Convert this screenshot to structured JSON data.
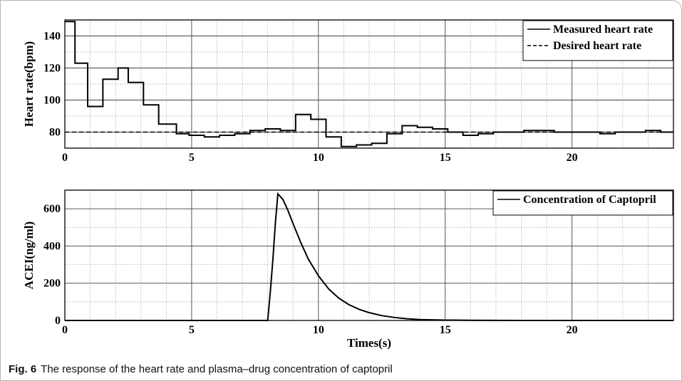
{
  "caption": {
    "label": "Fig. 6",
    "text": "The response of the heart rate and plasma–drug concentration of captopril"
  },
  "chart_data": [
    {
      "type": "line",
      "title": "",
      "xlabel": "",
      "ylabel": "Heart rate(bpm)",
      "xlim": [
        0,
        24
      ],
      "ylim": [
        70,
        150
      ],
      "xticks": [
        0,
        5,
        10,
        15,
        20
      ],
      "yticks": [
        80,
        100,
        120,
        140
      ],
      "grid": true,
      "legend_position": "top-right",
      "series": [
        {
          "name": "Measured heart rate",
          "style": "solid",
          "step": true,
          "x": [
            0,
            0.4,
            0.9,
            1.5,
            2.1,
            2.5,
            3.1,
            3.7,
            4.4,
            4.9,
            5.5,
            6.1,
            6.7,
            7.3,
            7.9,
            8.5,
            9.1,
            9.7,
            10.3,
            10.9,
            11.5,
            12.1,
            12.7,
            13.3,
            13.9,
            14.5,
            15.1,
            15.7,
            16.3,
            16.9,
            17.5,
            18.1,
            18.7,
            19.3,
            19.9,
            20.5,
            21.1,
            21.7,
            22.3,
            22.9,
            23.5,
            24
          ],
          "y": [
            149,
            123,
            96,
            113,
            120,
            111,
            97,
            85,
            79,
            78,
            77,
            78,
            79,
            81,
            82,
            81,
            91,
            88,
            77,
            71,
            72,
            73,
            79,
            84,
            83,
            82,
            80,
            78,
            79,
            80,
            80,
            81,
            81,
            80,
            80,
            80,
            79,
            80,
            80,
            81,
            80,
            80
          ]
        },
        {
          "name": "Desired heart rate",
          "style": "dashed",
          "x": [
            0,
            24
          ],
          "y": [
            80,
            80
          ]
        }
      ]
    },
    {
      "type": "line",
      "title": "",
      "xlabel": "Times(s)",
      "ylabel": "ACEI(ng/ml)",
      "xlim": [
        0,
        24
      ],
      "ylim": [
        0,
        700
      ],
      "xticks": [
        0,
        5,
        10,
        15,
        20
      ],
      "yticks": [
        0,
        200,
        400,
        600
      ],
      "grid": true,
      "legend_position": "top-right",
      "series": [
        {
          "name": "Concentration of Captopril",
          "style": "solid",
          "x": [
            0,
            7.9,
            8.0,
            8.1,
            8.2,
            8.3,
            8.4,
            8.6,
            8.8,
            9.0,
            9.3,
            9.6,
            10.0,
            10.4,
            10.8,
            11.2,
            11.6,
            12.0,
            12.5,
            13.0,
            13.5,
            14.0,
            15.0,
            16.0,
            18.0,
            20.0,
            24.0
          ],
          "y": [
            0,
            0,
            0,
            150,
            320,
            520,
            680,
            650,
            590,
            520,
            420,
            330,
            240,
            170,
            120,
            85,
            60,
            42,
            26,
            16,
            9,
            5,
            2,
            1,
            0,
            0,
            0
          ]
        }
      ]
    }
  ]
}
